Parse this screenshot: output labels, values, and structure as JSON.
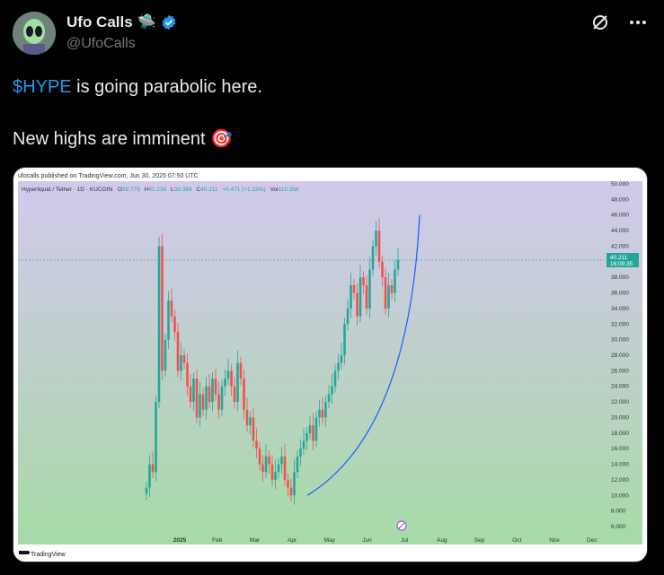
{
  "author": {
    "name": "Ufo Calls",
    "name_emoji": "🛸",
    "handle": "@UfoCalls",
    "verified_icon": "verified-badge-icon"
  },
  "icons": {
    "grok": "grok-icon",
    "more": "more-icon"
  },
  "tweet": {
    "cashtag": "$HYPE",
    "line1_rest": " is going parabolic here.",
    "line2": "New highs are imminent",
    "line2_emoji": "🎯"
  },
  "chart_image": {
    "published": "ufocalls published on TradingView.com, Jun 30, 2025 07:50 UTC",
    "symbol": "Hyperliquid / Tether · 1D · KUCOIN",
    "ohlc": {
      "o_label": "O",
      "o": "39.779",
      "h_label": "H",
      "h": "41.230",
      "l_label": "L",
      "l": "39.389",
      "c_label": "C",
      "c": "40.211",
      "change": "+0.471 (+1.19%)",
      "vol_label": "Vol",
      "vol": "110.35K"
    },
    "price_tag": "40.211",
    "time_tag": "16:09:35",
    "brand": "TradingView",
    "colors": {
      "up": "#26a69a",
      "down": "#ef5350",
      "curve": "#2962ff"
    },
    "chart_data": {
      "type": "candlestick",
      "y_ticks": [
        "50.000",
        "48.000",
        "46.000",
        "44.000",
        "42.000",
        "38.000",
        "36.000",
        "34.000",
        "32.000",
        "30.000",
        "28.000",
        "26.000",
        "24.000",
        "22.000",
        "20.000",
        "18.000",
        "16.000",
        "14.000",
        "12.000",
        "10.000",
        "8.000",
        "6.000"
      ],
      "x_ticks": [
        "2025",
        "Feb",
        "Mar",
        "Apr",
        "May",
        "Jun",
        "Jul",
        "Aug",
        "Sep",
        "Oct",
        "Nov",
        "Dec"
      ],
      "ylim": [
        6,
        50
      ],
      "last_price": 40.211,
      "closes": [
        11,
        14,
        13,
        22,
        42,
        26,
        30,
        35,
        33,
        31,
        26,
        28,
        27,
        24,
        22,
        25,
        20,
        23,
        21,
        24,
        22,
        25,
        23,
        21,
        24,
        25,
        26,
        24,
        22,
        27,
        25,
        21,
        19,
        20,
        17,
        16,
        14,
        13,
        15,
        14,
        12,
        13,
        14,
        15,
        12,
        11,
        10,
        13,
        15,
        16,
        17,
        18,
        19,
        17,
        20,
        21,
        20,
        22,
        23,
        24,
        26,
        27,
        28,
        32,
        34,
        37,
        36,
        33,
        38,
        37,
        34,
        39,
        42,
        44,
        40,
        38,
        34,
        37,
        36,
        39,
        40.2
      ]
    }
  }
}
